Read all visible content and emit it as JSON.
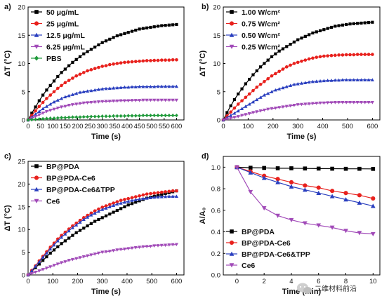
{
  "watermark": {
    "text": "二维材料前沿",
    "icon": "wechat-icon"
  },
  "chart_data": [
    {
      "panel_label": "a)",
      "type": "line",
      "xlabel": "Time (s)",
      "ylabel": "ΔT (°C)",
      "xlim": [
        0,
        630
      ],
      "ylim": [
        0,
        20
      ],
      "xticks": [
        0,
        50,
        100,
        150,
        200,
        250,
        300,
        350,
        400,
        450,
        500,
        550,
        600
      ],
      "yticks": [
        0,
        5,
        10,
        15,
        20
      ],
      "legend_position": "top-left",
      "x": [
        0,
        15,
        30,
        45,
        60,
        75,
        90,
        105,
        120,
        135,
        150,
        165,
        180,
        195,
        210,
        225,
        240,
        255,
        270,
        285,
        300,
        315,
        330,
        345,
        360,
        375,
        390,
        405,
        420,
        435,
        450,
        465,
        480,
        495,
        510,
        525,
        540,
        555,
        570,
        585,
        600
      ],
      "series": [
        {
          "name": "50 μg/mL",
          "color": "#000000",
          "marker": "square",
          "values": [
            0,
            1.2,
            2.3,
            3.4,
            4.4,
            5.3,
            6.1,
            6.9,
            7.7,
            8.4,
            9.0,
            9.6,
            10.2,
            10.7,
            11.2,
            11.7,
            12.1,
            12.5,
            12.9,
            13.3,
            13.7,
            14.0,
            14.3,
            14.6,
            14.9,
            15.1,
            15.3,
            15.5,
            15.7,
            15.9,
            16.1,
            16.2,
            16.3,
            16.4,
            16.5,
            16.6,
            16.7,
            16.75,
            16.8,
            16.85,
            16.9
          ]
        },
        {
          "name": "25 μg/mL",
          "color": "#e8211d",
          "marker": "circle",
          "values": [
            0,
            0.8,
            1.6,
            2.4,
            3.1,
            3.8,
            4.4,
            5.0,
            5.6,
            6.1,
            6.6,
            7.0,
            7.4,
            7.8,
            8.1,
            8.4,
            8.7,
            8.9,
            9.1,
            9.3,
            9.5,
            9.6,
            9.8,
            9.9,
            10.0,
            10.1,
            10.2,
            10.25,
            10.3,
            10.35,
            10.4,
            10.45,
            10.5,
            10.5,
            10.55,
            10.55,
            10.6,
            10.6,
            10.6,
            10.65,
            10.65
          ]
        },
        {
          "name": "12.5 μg/mL",
          "color": "#2a3fbf",
          "marker": "triangle",
          "values": [
            0,
            0.5,
            1.0,
            1.5,
            2.0,
            2.4,
            2.8,
            3.2,
            3.5,
            3.8,
            4.1,
            4.3,
            4.5,
            4.7,
            4.9,
            5.0,
            5.1,
            5.2,
            5.3,
            5.4,
            5.5,
            5.55,
            5.6,
            5.65,
            5.7,
            5.75,
            5.8,
            5.8,
            5.85,
            5.85,
            5.9,
            5.9,
            5.9,
            5.9,
            5.9,
            5.95,
            5.95,
            5.95,
            5.95,
            5.95,
            5.95
          ]
        },
        {
          "name": "6.25 μg/mL",
          "color": "#a14ab8",
          "marker": "triangle-down",
          "values": [
            0,
            0.3,
            0.6,
            0.9,
            1.2,
            1.5,
            1.7,
            1.9,
            2.1,
            2.3,
            2.4,
            2.6,
            2.7,
            2.8,
            2.9,
            3.0,
            3.05,
            3.1,
            3.15,
            3.2,
            3.25,
            3.3,
            3.3,
            3.35,
            3.35,
            3.4,
            3.4,
            3.4,
            3.45,
            3.45,
            3.45,
            3.5,
            3.5,
            3.5,
            3.5,
            3.5,
            3.5,
            3.5,
            3.5,
            3.5,
            3.5
          ]
        },
        {
          "name": "PBS",
          "color": "#1f9a3a",
          "marker": "diamond",
          "values": [
            0,
            0.05,
            0.1,
            0.15,
            0.2,
            0.25,
            0.3,
            0.3,
            0.35,
            0.4,
            0.4,
            0.45,
            0.5,
            0.5,
            0.5,
            0.55,
            0.55,
            0.6,
            0.6,
            0.6,
            0.65,
            0.65,
            0.65,
            0.7,
            0.7,
            0.7,
            0.7,
            0.75,
            0.75,
            0.75,
            0.75,
            0.8,
            0.8,
            0.8,
            0.8,
            0.8,
            0.8,
            0.8,
            0.8,
            0.8,
            0.8
          ]
        }
      ]
    },
    {
      "panel_label": "b)",
      "type": "line",
      "xlabel": "Time (s)",
      "ylabel": "ΔT (°C)",
      "xlim": [
        0,
        630
      ],
      "ylim": [
        0,
        20
      ],
      "xticks": [
        0,
        100,
        200,
        300,
        400,
        500,
        600
      ],
      "yticks": [
        0,
        5,
        10,
        15,
        20
      ],
      "legend_position": "top-left",
      "x": [
        0,
        15,
        30,
        45,
        60,
        75,
        90,
        105,
        120,
        135,
        150,
        165,
        180,
        195,
        210,
        225,
        240,
        255,
        270,
        285,
        300,
        315,
        330,
        345,
        360,
        375,
        390,
        405,
        420,
        435,
        450,
        465,
        480,
        495,
        510,
        525,
        540,
        555,
        570,
        585,
        600
      ],
      "series": [
        {
          "name": "1.00 W/cm²",
          "color": "#000000",
          "marker": "square",
          "values": [
            0,
            1.3,
            2.5,
            3.6,
            4.6,
            5.5,
            6.4,
            7.2,
            8.0,
            8.7,
            9.4,
            10.0,
            10.6,
            11.2,
            11.7,
            12.2,
            12.6,
            13.0,
            13.4,
            13.8,
            14.2,
            14.5,
            14.8,
            15.1,
            15.4,
            15.6,
            15.8,
            16.0,
            16.2,
            16.4,
            16.6,
            16.7,
            16.8,
            16.9,
            17.0,
            17.05,
            17.1,
            17.15,
            17.2,
            17.25,
            17.3
          ]
        },
        {
          "name": "0.75 W/cm²",
          "color": "#e8211d",
          "marker": "circle",
          "values": [
            0,
            0.7,
            1.4,
            2.1,
            2.8,
            3.4,
            4.0,
            4.6,
            5.2,
            5.8,
            6.3,
            6.8,
            7.3,
            7.8,
            8.2,
            8.6,
            9.0,
            9.4,
            9.7,
            10.0,
            10.2,
            10.4,
            10.6,
            10.8,
            10.95,
            11.1,
            11.2,
            11.3,
            11.35,
            11.4,
            11.45,
            11.5,
            11.5,
            11.55,
            11.55,
            11.55,
            11.6,
            11.6,
            11.6,
            11.6,
            11.6
          ]
        },
        {
          "name": "0.50 W/cm²",
          "color": "#2a3fbf",
          "marker": "triangle",
          "values": [
            0,
            0.4,
            0.8,
            1.2,
            1.6,
            2.0,
            2.4,
            2.8,
            3.2,
            3.6,
            4.0,
            4.4,
            4.7,
            5.0,
            5.3,
            5.5,
            5.7,
            5.9,
            6.1,
            6.3,
            6.4,
            6.5,
            6.6,
            6.7,
            6.8,
            6.85,
            6.9,
            6.95,
            7.0,
            7.0,
            7.05,
            7.05,
            7.1,
            7.1,
            7.1,
            7.1,
            7.1,
            7.1,
            7.1,
            7.1,
            7.1
          ]
        },
        {
          "name": "0.25 W/cm²",
          "color": "#a14ab8",
          "marker": "triangle-down",
          "values": [
            0,
            0.15,
            0.3,
            0.45,
            0.6,
            0.8,
            0.95,
            1.1,
            1.3,
            1.45,
            1.6,
            1.75,
            1.9,
            2.0,
            2.1,
            2.2,
            2.3,
            2.4,
            2.5,
            2.6,
            2.7,
            2.75,
            2.8,
            2.85,
            2.9,
            2.95,
            3.0,
            3.0,
            3.05,
            3.05,
            3.1,
            3.1,
            3.1,
            3.1,
            3.1,
            3.1,
            3.1,
            3.1,
            3.1,
            3.1,
            3.1
          ]
        }
      ]
    },
    {
      "panel_label": "c)",
      "type": "line",
      "xlabel": "Time (s)",
      "ylabel": "ΔT (°C)",
      "xlim": [
        0,
        630
      ],
      "ylim": [
        0,
        25
      ],
      "xticks": [
        0,
        100,
        200,
        300,
        400,
        500,
        600
      ],
      "yticks": [
        0,
        5,
        10,
        15,
        20,
        25
      ],
      "legend_position": "top-left",
      "x": [
        0,
        15,
        30,
        45,
        60,
        75,
        90,
        105,
        120,
        135,
        150,
        165,
        180,
        195,
        210,
        225,
        240,
        255,
        270,
        285,
        300,
        315,
        330,
        345,
        360,
        375,
        390,
        405,
        420,
        435,
        450,
        465,
        480,
        495,
        510,
        525,
        540,
        555,
        570,
        585,
        600
      ],
      "series": [
        {
          "name": "BP@PDA",
          "color": "#000000",
          "marker": "square",
          "values": [
            0,
            0.8,
            1.6,
            2.4,
            3.2,
            4.0,
            4.8,
            5.5,
            6.2,
            6.9,
            7.5,
            8.1,
            8.7,
            9.3,
            9.8,
            10.3,
            10.8,
            11.3,
            11.8,
            12.2,
            12.6,
            13.0,
            13.4,
            13.8,
            14.2,
            14.6,
            15.0,
            15.4,
            15.7,
            16.0,
            16.3,
            16.6,
            16.9,
            17.1,
            17.3,
            17.5,
            17.7,
            17.9,
            18.1,
            18.3,
            18.5
          ]
        },
        {
          "name": "BP@PDA-Ce6",
          "color": "#e8211d",
          "marker": "circle",
          "values": [
            0,
            1.0,
            2.0,
            3.1,
            4.1,
            5.1,
            6.1,
            7.0,
            7.9,
            8.7,
            9.4,
            10.1,
            10.8,
            11.4,
            12.0,
            12.6,
            13.1,
            13.6,
            14.1,
            14.5,
            14.9,
            15.2,
            15.5,
            15.8,
            16.1,
            16.4,
            16.6,
            16.8,
            17.0,
            17.2,
            17.4,
            17.6,
            17.8,
            17.9,
            18.0,
            18.1,
            18.2,
            18.3,
            18.4,
            18.5,
            18.5
          ]
        },
        {
          "name": "BP@PDA-Ce6&TPP",
          "color": "#2a3fbf",
          "marker": "triangle",
          "values": [
            0,
            0.9,
            1.9,
            2.9,
            3.9,
            4.8,
            5.7,
            6.6,
            7.5,
            8.3,
            9.0,
            9.7,
            10.4,
            11.0,
            11.6,
            12.2,
            12.7,
            13.2,
            13.6,
            14.0,
            14.4,
            14.7,
            15.0,
            15.3,
            15.6,
            15.8,
            16.0,
            16.2,
            16.4,
            16.55,
            16.7,
            16.8,
            16.9,
            17.0,
            17.1,
            17.15,
            17.2,
            17.25,
            17.3,
            17.3,
            17.3
          ]
        },
        {
          "name": "Ce6",
          "color": "#a14ab8",
          "marker": "triangle-down",
          "values": [
            0,
            0.3,
            0.6,
            0.9,
            1.2,
            1.5,
            1.8,
            2.1,
            2.4,
            2.7,
            2.9,
            3.2,
            3.4,
            3.6,
            3.8,
            4.0,
            4.2,
            4.4,
            4.6,
            4.8,
            5.0,
            5.1,
            5.2,
            5.35,
            5.5,
            5.6,
            5.7,
            5.8,
            5.9,
            6.0,
            6.1,
            6.2,
            6.25,
            6.3,
            6.4,
            6.45,
            6.5,
            6.55,
            6.6,
            6.65,
            6.7
          ]
        }
      ]
    },
    {
      "panel_label": "d)",
      "type": "line",
      "xlabel": "Time (min)",
      "ylabel": "A/A₀",
      "xlim": [
        -1,
        10.5
      ],
      "ylim": [
        0.0,
        1.1
      ],
      "xticks": [
        0,
        2,
        4,
        6,
        8,
        10
      ],
      "yticks": [
        0.0,
        0.2,
        0.4,
        0.6,
        0.8,
        1.0
      ],
      "legend_position": "bottom-left",
      "x": [
        0,
        1,
        2,
        3,
        4,
        5,
        6,
        7,
        8,
        9,
        10
      ],
      "series": [
        {
          "name": "BP@PDA",
          "color": "#000000",
          "marker": "square",
          "values": [
            1.0,
            0.995,
            0.993,
            0.99,
            0.99,
            0.988,
            0.987,
            0.986,
            0.985,
            0.985,
            0.984
          ]
        },
        {
          "name": "BP@PDA-Ce6",
          "color": "#e8211d",
          "marker": "circle",
          "values": [
            1.0,
            0.96,
            0.92,
            0.89,
            0.86,
            0.83,
            0.81,
            0.78,
            0.76,
            0.74,
            0.71
          ]
        },
        {
          "name": "BP@PDA-Ce6&TPP",
          "color": "#2a3fbf",
          "marker": "triangle",
          "values": [
            1.0,
            0.95,
            0.9,
            0.86,
            0.82,
            0.79,
            0.76,
            0.73,
            0.7,
            0.67,
            0.64
          ]
        },
        {
          "name": "Ce6",
          "color": "#a14ab8",
          "marker": "triangle-down",
          "values": [
            1.0,
            0.77,
            0.62,
            0.55,
            0.51,
            0.48,
            0.46,
            0.44,
            0.41,
            0.39,
            0.38
          ]
        }
      ]
    }
  ]
}
